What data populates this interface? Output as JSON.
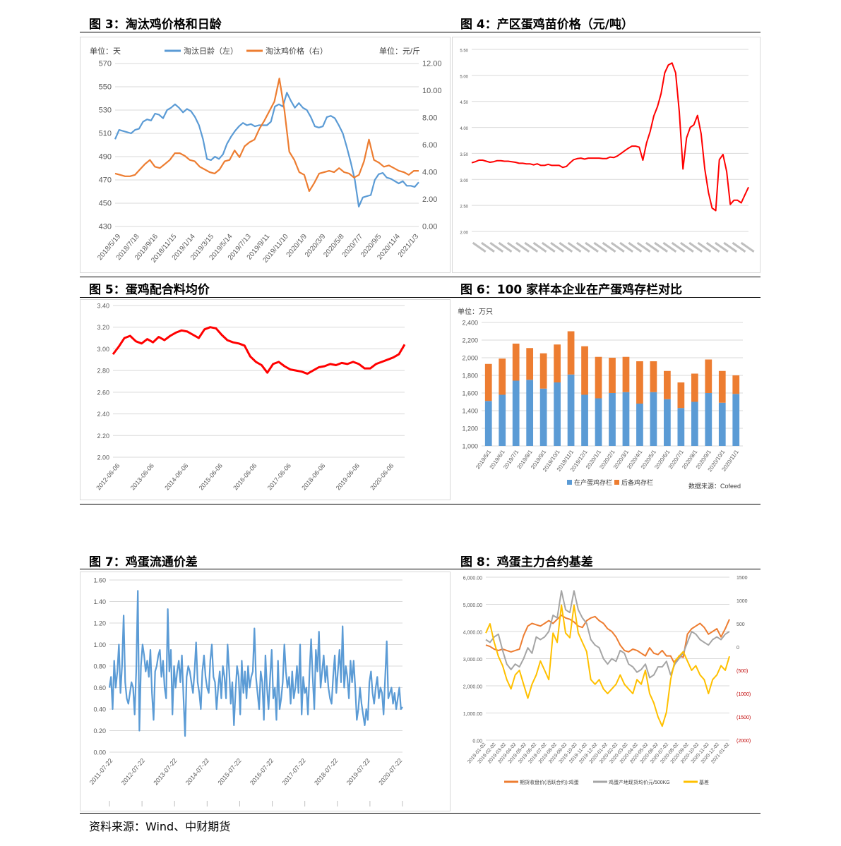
{
  "titles": {
    "fig3": "图 3：淘汰鸡价格和日龄",
    "fig4": "图 4：产区蛋鸡苗价格（元/吨）",
    "fig5": "图 5：蛋鸡配合料均价",
    "fig6": "图 6：100 家样本企业在产蛋鸡存栏对比",
    "fig7": "图 7：鸡蛋流通价差",
    "fig8": "图 8：鸡蛋主力合约基差"
  },
  "source": "资料来源：Wind、中财期货",
  "chart_data": [
    {
      "id": "fig3",
      "type": "line",
      "unit_left": "单位：天",
      "unit_right": "单位：元/斤",
      "yticks_left": [
        "570",
        "550",
        "530",
        "510",
        "490",
        "470",
        "450",
        "430"
      ],
      "yticks_right": [
        "12.00",
        "10.00",
        "8.00",
        "6.00",
        "4.00",
        "2.00",
        "0.00"
      ],
      "ylim_left": [
        430,
        570
      ],
      "ylim_right": [
        0,
        12
      ],
      "x_labels": [
        "2018/5/19",
        "2018/7/18",
        "2018/9/16",
        "2018/11/15",
        "2019/1/14",
        "2019/3/15",
        "2019/5/14",
        "2019/7/13",
        "2019/9/11",
        "2019/11/10",
        "2020/1/9",
        "2020/3/9",
        "2020/5/8",
        "2020/7/7",
        "2020/9/5",
        "2020/11/4",
        "2021/1/3"
      ],
      "series": [
        {
          "name": "淘汰日龄（左）",
          "axis": "left",
          "color": "#5b9bd5",
          "values": [
            505,
            513,
            512,
            511,
            510,
            513,
            514,
            520,
            522,
            521,
            527,
            526,
            523,
            530,
            532,
            535,
            532,
            528,
            531,
            529,
            524,
            517,
            505,
            488,
            487,
            490,
            488,
            492,
            501,
            507,
            512,
            516,
            519,
            517,
            518,
            516,
            517,
            517,
            517,
            520,
            533,
            535,
            533,
            545,
            538,
            532,
            536,
            532,
            530,
            524,
            516,
            515,
            516,
            524,
            525,
            523,
            517,
            510,
            498,
            485,
            470,
            447,
            455,
            456,
            457,
            470,
            475,
            476,
            472,
            471,
            469,
            467,
            469,
            465,
            465,
            464,
            468
          ]
        },
        {
          "name": "淘汰鸡价格（右）",
          "axis": "right",
          "color": "#ed7d31",
          "values": [
            3.9,
            3.8,
            3.7,
            3.7,
            3.8,
            4.2,
            4.6,
            4.9,
            4.4,
            4.3,
            4.6,
            4.9,
            5.4,
            5.4,
            5.2,
            4.9,
            4.8,
            4.4,
            4.2,
            4.0,
            3.9,
            4.2,
            4.8,
            4.9,
            5.6,
            5.1,
            5.9,
            6.2,
            6.4,
            7.2,
            7.8,
            8.5,
            9.2,
            10.9,
            8.6,
            5.5,
            4.9,
            4.0,
            3.8,
            2.6,
            3.2,
            3.9,
            4.0,
            4.1,
            4.0,
            4.3,
            4.0,
            3.9,
            3.6,
            3.8,
            4.8,
            6.4,
            4.9,
            4.7,
            4.4,
            4.5,
            4.3,
            4.1,
            4.0,
            3.8,
            4.1,
            4.1
          ]
        }
      ]
    },
    {
      "id": "fig4",
      "type": "line",
      "yticks": [
        "5.50",
        "5.00",
        "4.50",
        "4.00",
        "3.50",
        "3.00",
        "2.50",
        "2.00"
      ],
      "ylim": [
        2.0,
        5.5
      ],
      "color": "#ff0000",
      "values": [
        3.32,
        3.34,
        3.37,
        3.37,
        3.35,
        3.33,
        3.34,
        3.36,
        3.36,
        3.35,
        3.35,
        3.34,
        3.33,
        3.31,
        3.31,
        3.3,
        3.3,
        3.28,
        3.3,
        3.27,
        3.27,
        3.29,
        3.27,
        3.27,
        3.27,
        3.23,
        3.25,
        3.32,
        3.38,
        3.4,
        3.41,
        3.39,
        3.41,
        3.41,
        3.41,
        3.41,
        3.4,
        3.4,
        3.43,
        3.42,
        3.45,
        3.5,
        3.55,
        3.6,
        3.64,
        3.64,
        3.62,
        3.37,
        3.7,
        3.92,
        4.22,
        4.4,
        4.65,
        5.05,
        5.2,
        5.24,
        5.05,
        4.3,
        3.2,
        3.8,
        4.0,
        4.05,
        4.23,
        3.88,
        3.2,
        2.75,
        2.45,
        2.4,
        3.38,
        3.48,
        3.15,
        2.52,
        2.6,
        2.6,
        2.55,
        2.7,
        2.85
      ]
    },
    {
      "id": "fig5",
      "type": "line",
      "yticks": [
        "3.40",
        "3.20",
        "3.00",
        "2.80",
        "2.60",
        "2.40",
        "2.20",
        "2.00"
      ],
      "ylim": [
        2.0,
        3.4
      ],
      "x_labels": [
        "2012-06-06",
        "2013-06-06",
        "2014-06-06",
        "2015-06-06",
        "2016-06-06",
        "2017-06-06",
        "2018-06-06",
        "2019-06-06",
        "2020-06-06"
      ],
      "color": "#ff0000",
      "values": [
        2.95,
        3.02,
        3.1,
        3.12,
        3.07,
        3.05,
        3.09,
        3.06,
        3.11,
        3.08,
        3.12,
        3.15,
        3.17,
        3.16,
        3.13,
        3.1,
        3.18,
        3.2,
        3.19,
        3.13,
        3.08,
        3.06,
        3.05,
        3.03,
        2.93,
        2.88,
        2.85,
        2.78,
        2.86,
        2.88,
        2.84,
        2.81,
        2.8,
        2.79,
        2.77,
        2.8,
        2.83,
        2.84,
        2.86,
        2.85,
        2.87,
        2.86,
        2.88,
        2.86,
        2.82,
        2.82,
        2.86,
        2.88,
        2.9,
        2.92,
        2.95,
        3.04
      ]
    },
    {
      "id": "fig6",
      "type": "bar",
      "unit": "单位：万只",
      "yticks": [
        "2,400",
        "2,200",
        "2,000",
        "1,800",
        "1,600",
        "1,400",
        "1,200",
        "1,000"
      ],
      "ylim": [
        1000,
        2400
      ],
      "categories": [
        "2019/5/1",
        "2019/6/1",
        "2019/7/1",
        "2019/8/1",
        "2019/9/1",
        "2019/10/1",
        "2019/11/1",
        "2019/12/1",
        "2020/1/1",
        "2020/2/1",
        "2020/3/1",
        "2020/4/1",
        "2020/5/1",
        "2020/6/1",
        "2020/7/1",
        "2020/8/1",
        "2020/9/1",
        "2020/10/1",
        "2020/11/1"
      ],
      "series": [
        {
          "name": "在产蛋鸡存栏",
          "color": "#5b9bd5",
          "values": [
            1510,
            1580,
            1740,
            1750,
            1650,
            1720,
            1810,
            1580,
            1540,
            1600,
            1610,
            1480,
            1610,
            1530,
            1430,
            1500,
            1600,
            1490,
            1590
          ]
        },
        {
          "name": "后备鸡存栏",
          "color": "#ed7d31",
          "values": [
            420,
            410,
            420,
            360,
            400,
            430,
            490,
            550,
            470,
            400,
            400,
            480,
            350,
            320,
            290,
            320,
            380,
            360,
            210
          ]
        }
      ],
      "source": "数据来源：Cofeed"
    },
    {
      "id": "fig7",
      "type": "line",
      "yticks": [
        "1.60",
        "1.40",
        "1.20",
        "1.00",
        "0.80",
        "0.60",
        "0.40",
        "0.20",
        "0.00"
      ],
      "ylim": [
        0,
        1.6
      ],
      "x_labels": [
        "2011-07-22",
        "2012-07-22",
        "2013-07-22",
        "2014-07-22",
        "2015-07-22",
        "2016-07-22",
        "2017-07-22",
        "2018-07-22",
        "2019-07-22",
        "2020-07-22"
      ],
      "color": "#5b9bd5",
      "values": [
        0.6,
        0.7,
        0.4,
        0.85,
        0.6,
        0.75,
        1.0,
        0.55,
        0.8,
        1.27,
        0.65,
        0.5,
        0.45,
        0.55,
        0.65,
        0.6,
        0.35,
        0.75,
        1.5,
        0.2,
        0.8,
        1.0,
        0.9,
        0.75,
        0.85,
        0.7,
        0.95,
        0.55,
        0.3,
        0.75,
        0.8,
        0.9,
        0.95,
        0.7,
        0.85,
        0.6,
        0.5,
        1.33,
        0.75,
        0.95,
        0.35,
        0.8,
        0.6,
        0.75,
        0.85,
        0.65,
        0.9,
        0.5,
        0.15,
        0.7,
        0.8,
        0.75,
        0.65,
        0.55,
        0.75,
        1.02,
        0.65,
        0.55,
        0.4,
        0.75,
        0.9,
        0.7,
        0.6,
        0.55,
        0.85,
        1.0,
        0.7,
        0.65,
        0.4,
        0.6,
        0.75,
        0.5,
        0.8,
        0.7,
        0.5,
        1.0,
        0.75,
        0.45,
        0.65,
        0.25,
        0.55,
        0.8,
        0.7,
        0.35,
        0.85,
        0.55,
        0.75,
        0.5,
        0.8,
        0.6,
        0.7,
        0.75,
        1.15,
        0.7,
        0.55,
        0.4,
        0.75,
        0.65,
        0.3,
        0.9,
        0.6,
        0.4,
        0.7,
        0.95,
        0.5,
        0.6,
        0.3,
        0.85,
        0.4,
        0.5,
        0.65,
        1.0,
        0.75,
        0.6,
        0.7,
        0.45,
        0.75,
        0.5,
        0.6,
        0.8,
        0.55,
        1.0,
        0.35,
        0.7,
        0.55,
        0.6,
        0.35,
        0.75,
        1.05,
        0.7,
        0.4,
        0.95,
        0.75,
        1.12,
        0.6,
        0.75,
        0.9,
        0.65,
        0.8,
        0.6,
        0.5,
        0.45,
        0.7,
        0.9,
        0.55,
        0.75,
        0.95,
        0.65,
        1.17,
        0.6,
        0.8,
        0.7,
        0.5,
        0.85,
        0.65,
        0.85,
        0.6,
        0.3,
        0.4,
        0.6,
        0.45,
        0.35,
        0.25,
        0.4,
        0.3,
        0.65,
        0.75,
        0.55,
        0.45,
        0.6,
        0.7,
        0.5,
        0.6,
        0.55,
        0.35,
        0.7,
        1.03,
        0.5,
        0.55,
        0.6,
        0.45,
        0.55,
        0.4,
        0.5,
        0.6,
        0.4,
        0.42
      ]
    },
    {
      "id": "fig8",
      "type": "line",
      "yticks_left": [
        "6,000.00",
        "5,000.00",
        "4,000.00",
        "3,000.00",
        "2,000.00",
        "1,000.00",
        "0.00"
      ],
      "yticks_right": [
        "1500",
        "1000",
        "500",
        "0",
        "(500)",
        "(1000)",
        "(1500)",
        "(2000)"
      ],
      "ylim_left": [
        0,
        6000
      ],
      "ylim_right": [
        -2000,
        1500
      ],
      "x_labels": [
        "2019-01-02",
        "2019-02-02",
        "2019-03-02",
        "2019-04-02",
        "2019-05-02",
        "2019-06-02",
        "2019-07-02",
        "2019-08-02",
        "2019-09-02",
        "2019-10-02",
        "2019-11-02",
        "2019-12-02",
        "2020-01-02",
        "2020-02-02",
        "2020-03-02",
        "2020-04-02",
        "2020-05-02",
        "2020-06-02",
        "2020-07-02",
        "2020-08-02",
        "2020-09-02",
        "2020-10-02",
        "2020-11-02",
        "2020-12-02",
        "2021-01-02"
      ],
      "series": [
        {
          "name": "期货收盘价(活跃合约):鸡蛋",
          "axis": "left",
          "color": "#ed7d31",
          "values": [
            3500,
            3450,
            3350,
            3300,
            3350,
            3300,
            3250,
            3300,
            3350,
            3850,
            4200,
            4300,
            4250,
            4200,
            4300,
            4400,
            4300,
            4450,
            4600,
            4500,
            4450,
            4350,
            4200,
            4150,
            4400,
            4500,
            4550,
            4400,
            4300,
            4100,
            4000,
            3800,
            3500,
            3300,
            3250,
            3350,
            3300,
            3200,
            3100,
            3400,
            3200,
            3150,
            3300,
            3100,
            3100,
            2800,
            3100,
            3050,
            3900,
            4100,
            4200,
            4300,
            4150,
            3900,
            4000,
            4100,
            3800,
            4100,
            4450
          ]
        },
        {
          "name": "鸡蛋产地现货均价元/500KG",
          "axis": "left",
          "color": "#a5a5a5",
          "values": [
            3700,
            3600,
            3800,
            3900,
            3300,
            2800,
            2600,
            2800,
            2700,
            3000,
            3400,
            3200,
            3800,
            3700,
            3800,
            4000,
            4600,
            4500,
            5500,
            4800,
            4700,
            5500,
            4800,
            4500,
            4300,
            3700,
            3500,
            3400,
            3000,
            2800,
            3000,
            2900,
            3300,
            3200,
            2800,
            2700,
            2500,
            2600,
            2800,
            2300,
            2400,
            2700,
            2700,
            2900,
            2400,
            2800,
            3000,
            3200,
            3600,
            4000,
            3900,
            3700,
            3600,
            3500,
            3700,
            3800,
            3700,
            3900,
            4000
          ]
        },
        {
          "name": "基差",
          "axis": "right",
          "color": "#ffc000",
          "values": [
            300,
            500,
            100,
            -200,
            -400,
            -700,
            -900,
            -600,
            -500,
            -800,
            -1100,
            -800,
            -600,
            -300,
            -500,
            -700,
            300,
            100,
            900,
            300,
            200,
            900,
            300,
            100,
            -100,
            -700,
            -800,
            -700,
            -900,
            -1000,
            -900,
            -800,
            -600,
            -800,
            -900,
            -1000,
            -700,
            -800,
            -500,
            -1000,
            -1200,
            -1500,
            -1700,
            -1400,
            -700,
            -300,
            -200,
            -100,
            -300,
            -500,
            -400,
            -600,
            -700,
            -1000,
            -700,
            -600,
            -400,
            -500,
            -200
          ]
        }
      ]
    }
  ]
}
